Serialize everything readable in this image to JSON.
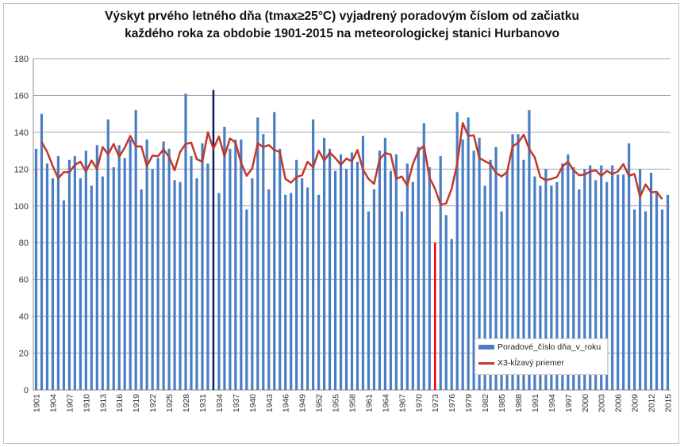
{
  "chart_data": {
    "type": "bar",
    "title": "Výskyt prvého letného dňa (tmax≥25°C) vyjadrený poradovým číslom od začiatku\nkaždého roka za obdobie 1901-2015 na meteorologickej stanici Hurbanovo",
    "title_lines": [
      "Výskyt prvého letného dňa (tmax≥25°C) vyjadrený poradovým číslom od začiatku",
      "každého roka za obdobie 1901-2015 na meteorologickej stanici Hurbanovo"
    ],
    "x_start": 1901,
    "x_end": 2015,
    "x_tick_step": 3,
    "ylim": [
      0,
      180
    ],
    "y_tick_step": 20,
    "grid": true,
    "legend_position": "bottom-right",
    "series": [
      {
        "name": "Poradové_číslo dňa_v_roku",
        "type": "bar",
        "color": "#4a7ec4",
        "values": [
          131,
          150,
          123,
          115,
          127,
          103,
          125,
          127,
          115,
          130,
          111,
          133,
          116,
          147,
          121,
          133,
          126,
          136,
          152,
          109,
          136,
          120,
          126,
          135,
          131,
          114,
          113,
          161,
          127,
          115,
          134,
          123,
          163,
          107,
          143,
          131,
          136,
          136,
          98,
          115,
          148,
          139,
          109,
          151,
          131,
          106,
          107,
          125,
          115,
          110,
          147,
          106,
          137,
          131,
          119,
          128,
          120,
          129,
          124,
          138,
          97,
          109,
          130,
          137,
          119,
          128,
          97,
          123,
          113,
          132,
          145,
          121,
          80,
          127,
          95,
          82,
          151,
          136,
          148,
          130,
          137,
          111,
          125,
          132,
          97,
          119,
          139,
          139,
          125,
          152,
          116,
          111,
          120,
          111,
          113,
          123,
          128,
          121,
          109,
          120,
          122,
          114,
          122,
          113,
          122,
          117,
          117,
          134,
          98,
          120,
          97,
          118,
          107,
          98,
          106
        ]
      },
      {
        "name": "X3-kĺzavý priemer",
        "type": "line",
        "color": "#c0392b",
        "window": 3
      }
    ],
    "highlights": [
      {
        "year": 1933,
        "color": "#0b1a5e"
      },
      {
        "year": 1973,
        "color": "#ff0000"
      }
    ]
  }
}
